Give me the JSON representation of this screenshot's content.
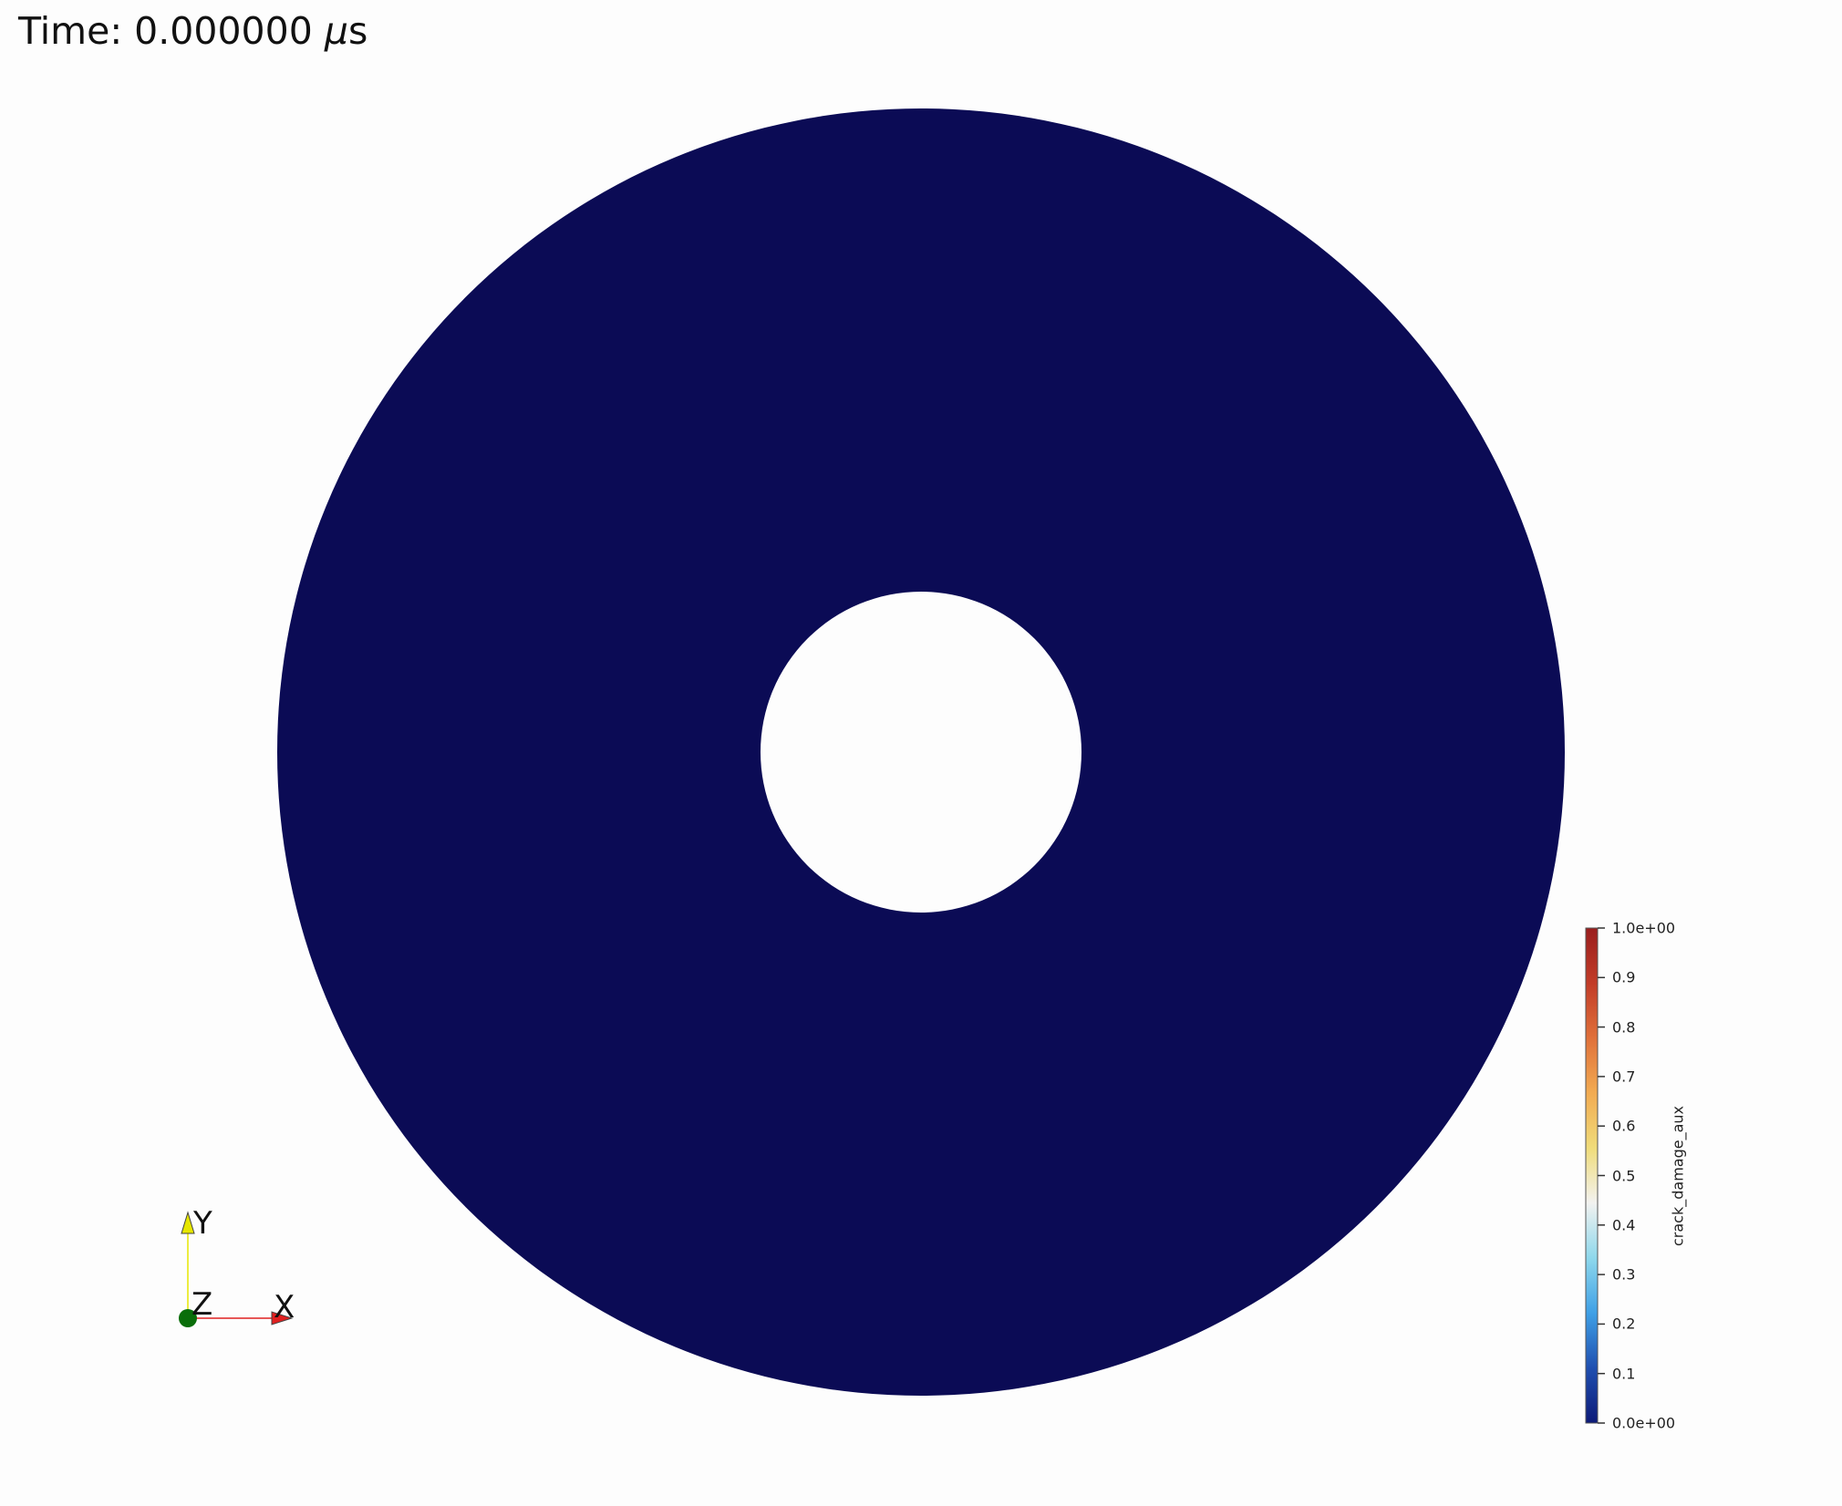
{
  "title": {
    "prefix": "Time: 0.000000 ",
    "mu": "μ",
    "unit": "s"
  },
  "colors": {
    "background": "#fdfdfd",
    "annulus_fill": "#0b0b55",
    "x_axis": "#e02020",
    "y_axis": "#e6e600",
    "z_axis": "#0a6e0a"
  },
  "colorbar": {
    "title": "crack_damage_aux",
    "range": [
      0.0,
      1.0
    ],
    "labels": [
      "1.0e+00",
      "0.9",
      "0.8",
      "0.7",
      "0.6",
      "0.5",
      "0.4",
      "0.3",
      "0.2",
      "0.1",
      "0.0e+00"
    ],
    "colormap": [
      "#0d1a78",
      "#1f4fb0",
      "#3fa0e6",
      "#8ed8ec",
      "#f2f2f0",
      "#f0dc7a",
      "#f2ab52",
      "#e0703a",
      "#c23c28",
      "#9a1e1e"
    ]
  },
  "orientation_axes": {
    "x_label": "X",
    "y_label": "Y",
    "z_label": "Z"
  }
}
